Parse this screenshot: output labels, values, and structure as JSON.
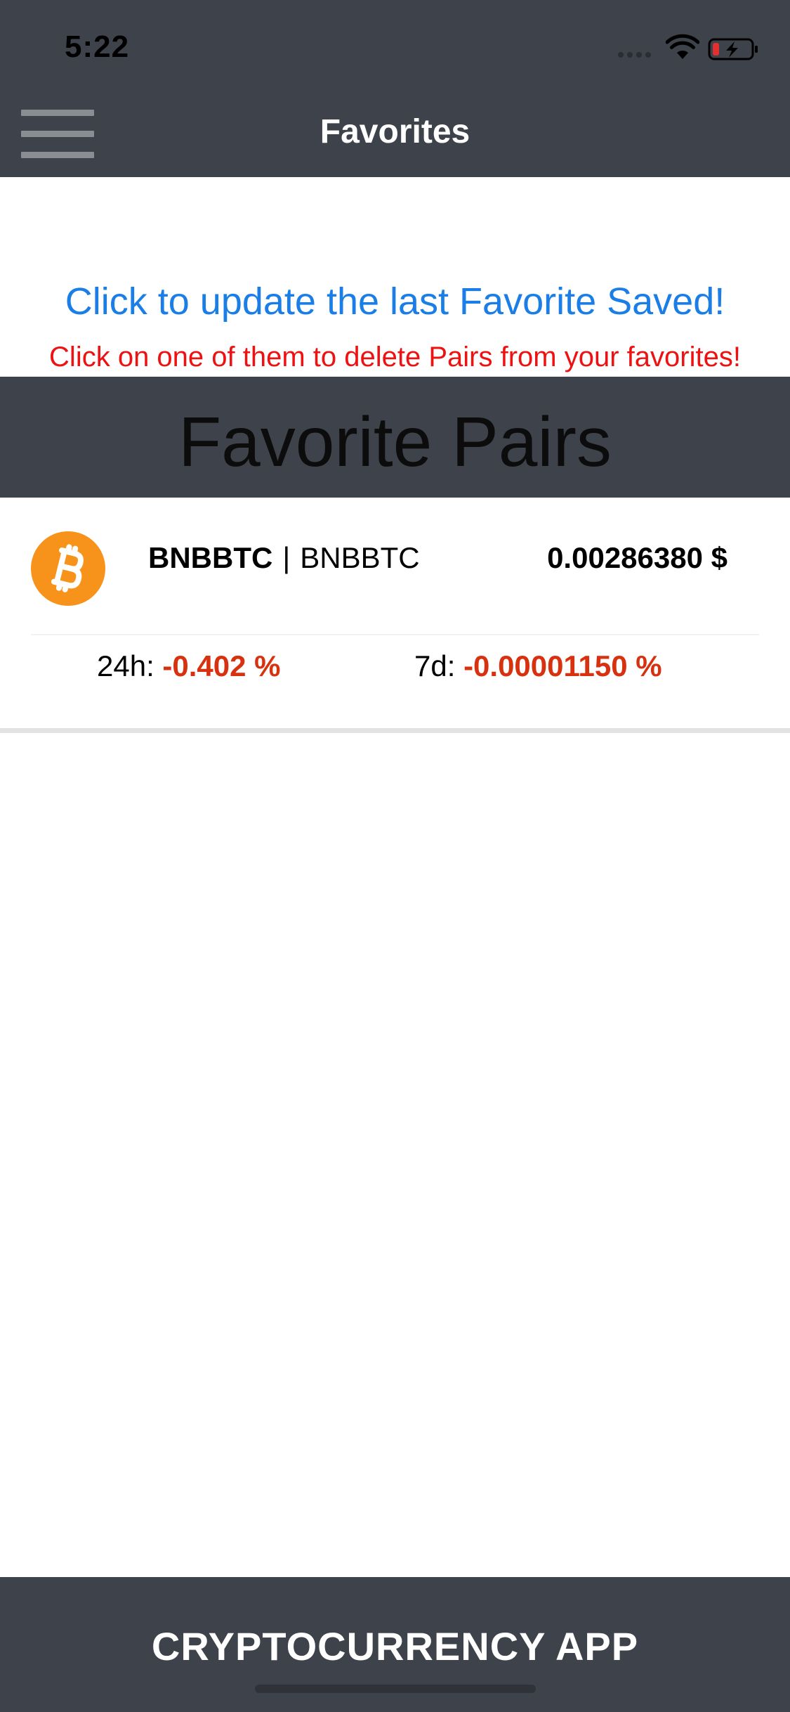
{
  "status_bar": {
    "time": "5:22",
    "wifi_icon": "wifi-icon",
    "battery_icon": "battery-charging-icon",
    "battery_color": "#e03030"
  },
  "nav": {
    "title": "Favorites",
    "menu_icon": "hamburger-menu-icon"
  },
  "messages": {
    "update_link": "Click to update the last Favorite Saved!",
    "delete_hint": "Click on one of them to delete Pairs from your favorites!"
  },
  "section": {
    "title": "Favorite Pairs"
  },
  "favorites": [
    {
      "icon": "bitcoin-icon",
      "icon_color": "#f7931a",
      "symbol": "BNBBTC",
      "separator": "|",
      "name": "BNBBTC",
      "price": "0.00286380 $",
      "change_24h_label": "24h:",
      "change_24h_value": "-0.402 %",
      "change_7d_label": "7d:",
      "change_7d_value": "-0.00001150 %",
      "negative_color": "#d8310f"
    }
  ],
  "footer": {
    "title": "CRYPTOCURRENCY APP"
  },
  "colors": {
    "header_bg": "#3e424a",
    "link_blue": "#1a7ee6",
    "hint_red": "#ee1111"
  }
}
